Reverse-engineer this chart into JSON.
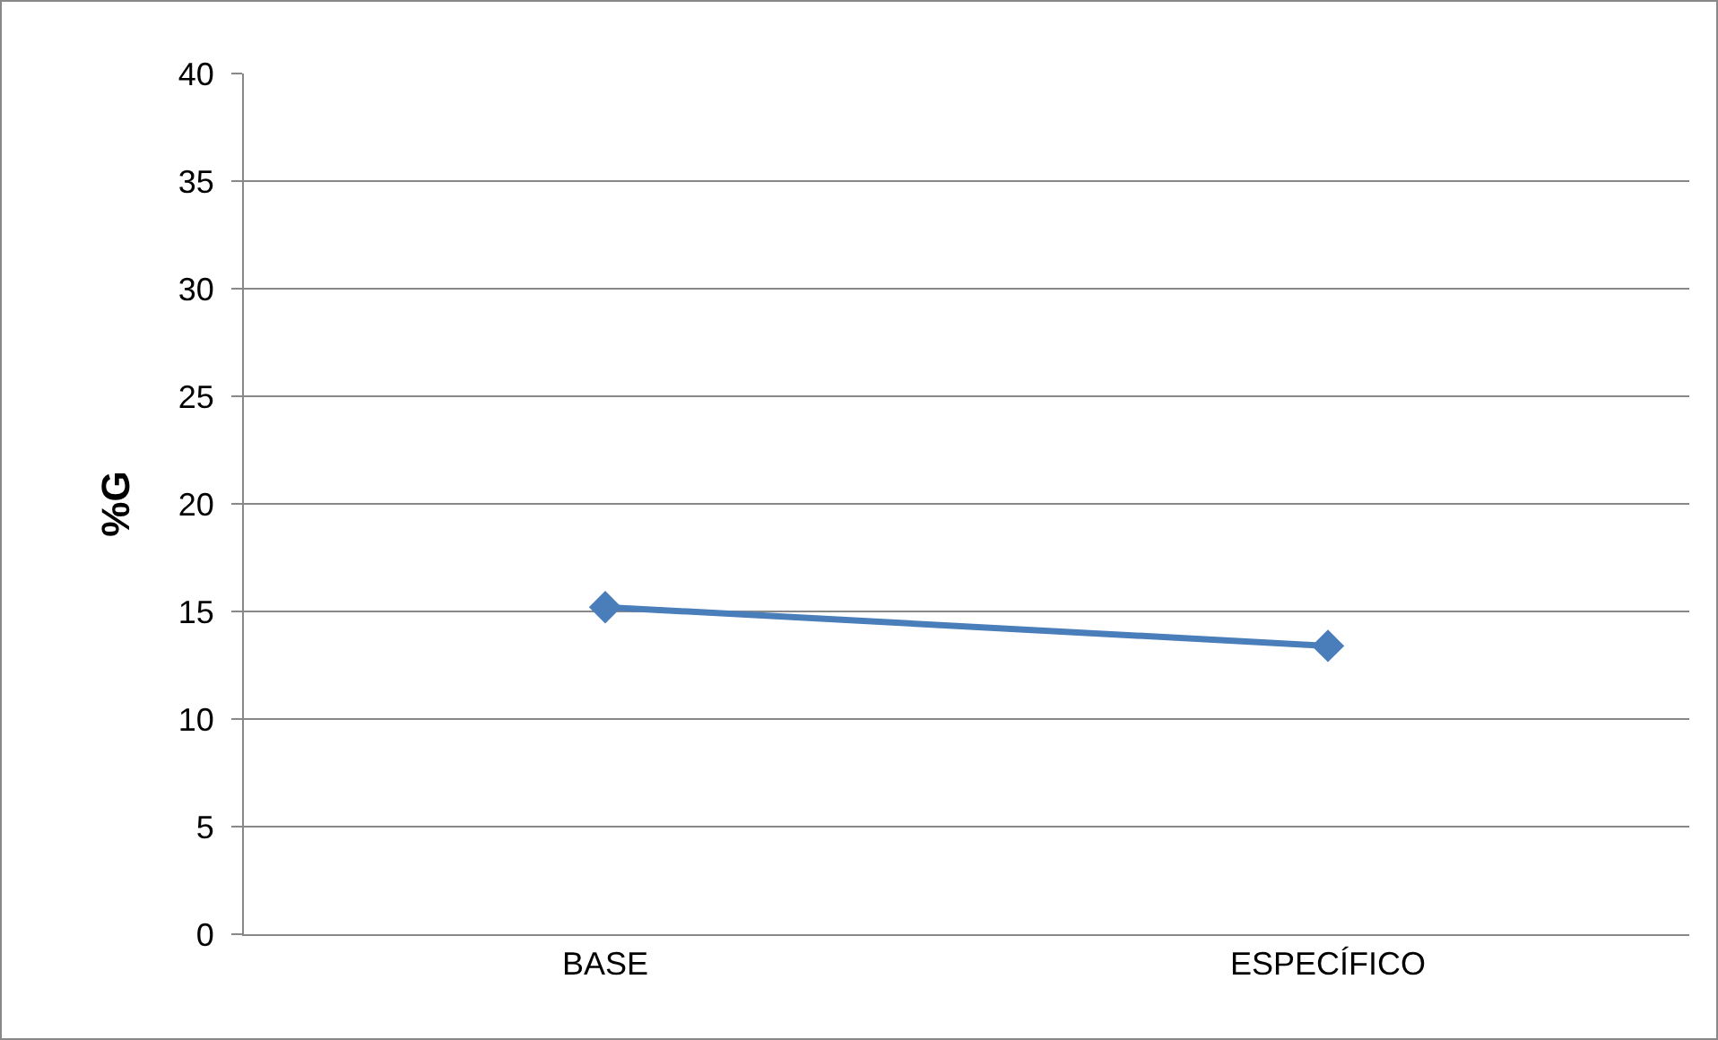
{
  "chart_data": {
    "type": "line",
    "ylabel": "%G",
    "categories": [
      "BASE",
      "ESPECÍFICO"
    ],
    "series": [
      {
        "color": "#4a7ebb",
        "values": [
          15.2,
          13.4
        ]
      }
    ],
    "ylim": [
      0,
      40
    ],
    "yticks": [
      0,
      5,
      10,
      15,
      20,
      25,
      30,
      35,
      40
    ],
    "grid": "y",
    "legend": false,
    "marker": "diamond",
    "line_style": "solid"
  }
}
